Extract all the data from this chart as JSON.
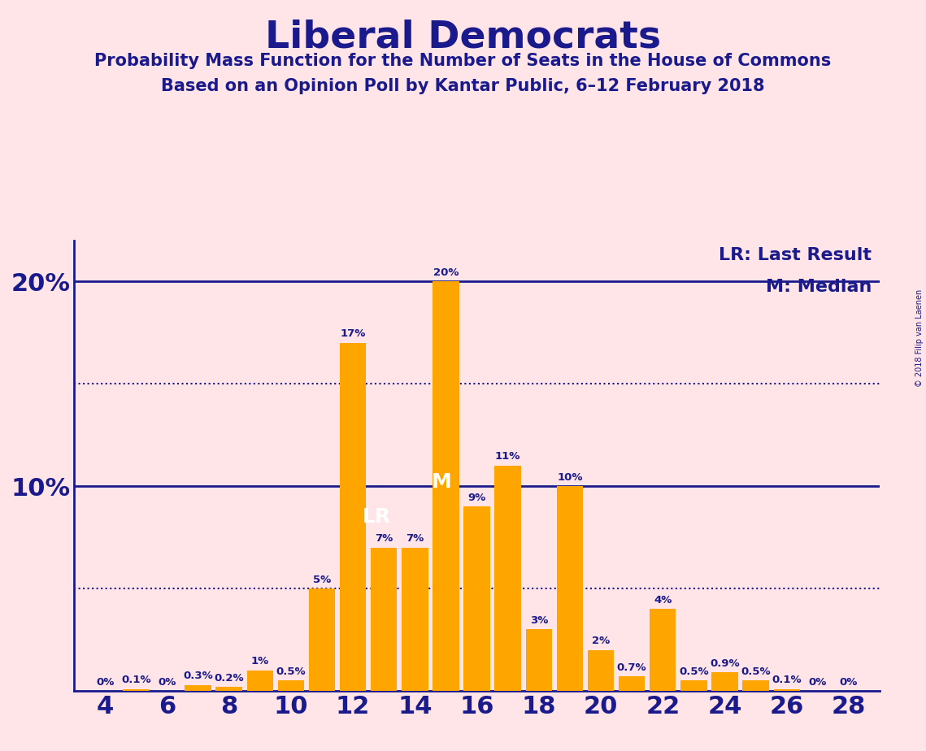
{
  "title": "Liberal Democrats",
  "subtitle1": "Probability Mass Function for the Number of Seats in the House of Commons",
  "subtitle2": "Based on an Opinion Poll by Kantar Public, 6–12 February 2018",
  "copyright": "© 2018 Filip van Laenen",
  "seats": [
    4,
    5,
    6,
    7,
    8,
    9,
    10,
    11,
    12,
    13,
    14,
    15,
    16,
    17,
    18,
    19,
    20,
    21,
    22,
    23,
    24,
    25,
    26,
    27,
    28
  ],
  "probabilities": [
    0.0,
    0.1,
    0.0,
    0.3,
    0.2,
    1.0,
    0.5,
    5.0,
    17.0,
    7.0,
    7.0,
    20.0,
    9.0,
    11.0,
    3.0,
    10.0,
    2.0,
    0.7,
    4.0,
    0.5,
    0.9,
    0.5,
    0.1,
    0.0,
    0.0
  ],
  "bar_color": "#FFA500",
  "background_color": "#FFE4E8",
  "text_color": "#1a1a8c",
  "title_color": "#1a1a8c",
  "last_result_seat": 12,
  "median_seat": 15,
  "legend_lr": "LR: Last Result",
  "legend_m": "M: Median",
  "ylim": [
    0,
    22
  ],
  "dotted_lines": [
    5.0,
    15.0
  ],
  "solid_lines": [
    10.0,
    20.0
  ],
  "lr_label": "LR",
  "m_label": "M"
}
